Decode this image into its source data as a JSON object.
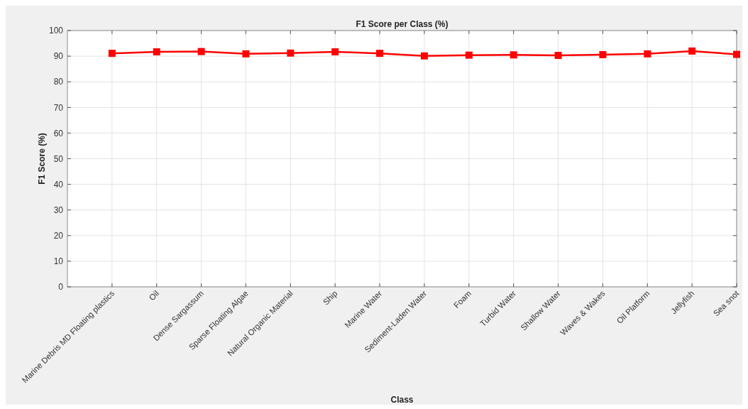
{
  "chart_data": {
    "type": "line",
    "title": "F1 Score per Class (%)",
    "xlabel": "Class",
    "ylabel": "F1 Score (%)",
    "categories": [
      "Marine Debris MD Floating plastics",
      "Oil",
      "Dense Sargassum",
      "Sparse Floating Algae",
      "Natural Organic Material",
      "Ship",
      "Marine Water",
      "Sediment-Laden Water",
      "Foam",
      "Turbid Water",
      "Shallow Water",
      "Waves & Wakes",
      "Oil Platform",
      "Jellyfish",
      "Sea snot"
    ],
    "series": [
      {
        "color": "#ff0000",
        "values": [
          91.1,
          91.7,
          91.8,
          90.9,
          91.2,
          91.7,
          91.1,
          90.1,
          90.4,
          90.5,
          90.3,
          90.6,
          90.9,
          92.0,
          90.7
        ]
      }
    ],
    "ylim": [
      0,
      100
    ],
    "yticks": [
      0,
      10,
      20,
      30,
      40,
      50,
      60,
      70,
      80,
      90,
      100
    ],
    "grid": true,
    "marker": "square",
    "line_style": "solid"
  }
}
